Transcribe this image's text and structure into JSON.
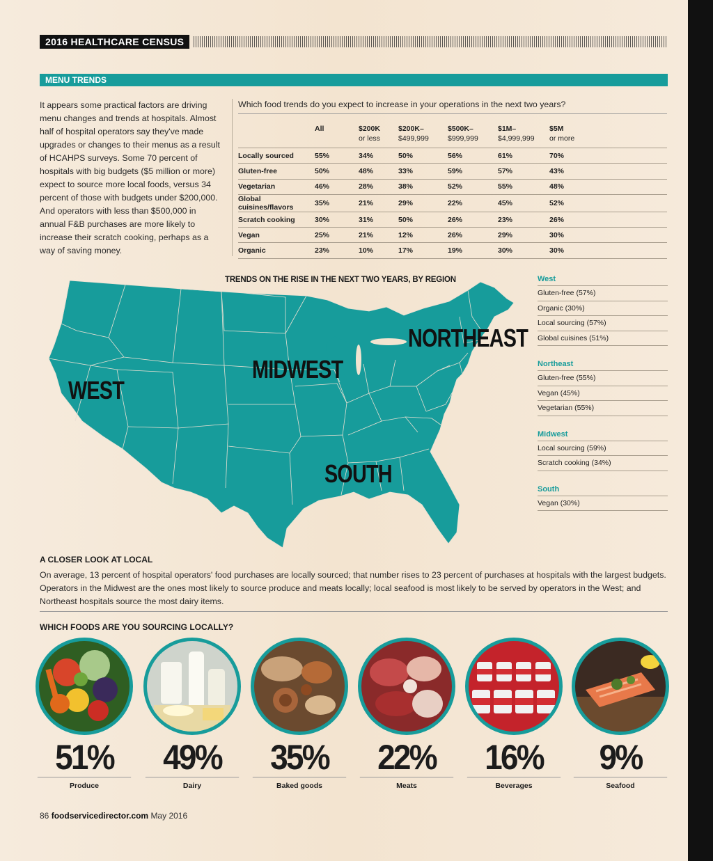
{
  "header": {
    "census": "2016 HEALTHCARE CENSUS",
    "section": "MENU TRENDS"
  },
  "intro": "It appears some practical factors are driving menu changes and trends at hospitals. Almost half of hospital operators say they've made upgrades or changes to their menus as a result of HCAHPS surveys. Some 70 percent of hospitals with big budgets ($5 million or more) expect to source more local foods, versus 34 percent of those with budgets under $200,000. And operators with less than $500,000 in annual F&B purchases are more likely to increase their scratch cooking, perhaps as a way of saving money.",
  "trends": {
    "question": "Which food trends do you expect to increase in your operations in the next two years?",
    "columns": [
      {
        "top": "All",
        "sub": ""
      },
      {
        "top": "$200K",
        "sub": "or less"
      },
      {
        "top": "$200K–",
        "sub": "$499,999"
      },
      {
        "top": "$500K–",
        "sub": "$999,999"
      },
      {
        "top": "$1M–",
        "sub": "$4,999,999"
      },
      {
        "top": "$5M",
        "sub": "or more"
      }
    ],
    "rows": [
      {
        "label": "Locally sourced",
        "values": [
          "55%",
          "34%",
          "50%",
          "56%",
          "61%",
          "70%"
        ]
      },
      {
        "label": "Gluten-free",
        "values": [
          "50%",
          "48%",
          "33%",
          "59%",
          "57%",
          "43%"
        ]
      },
      {
        "label": "Vegetarian",
        "values": [
          "46%",
          "28%",
          "38%",
          "52%",
          "55%",
          "48%"
        ]
      },
      {
        "label": "Global cuisines/flavors",
        "values": [
          "35%",
          "21%",
          "29%",
          "22%",
          "45%",
          "52%"
        ]
      },
      {
        "label": "Scratch cooking",
        "values": [
          "30%",
          "31%",
          "50%",
          "26%",
          "23%",
          "26%"
        ]
      },
      {
        "label": "Vegan",
        "values": [
          "25%",
          "21%",
          "12%",
          "26%",
          "29%",
          "30%"
        ]
      },
      {
        "label": "Organic",
        "values": [
          "23%",
          "10%",
          "17%",
          "19%",
          "30%",
          "30%"
        ]
      }
    ]
  },
  "map": {
    "title": "TRENDS ON THE RISE IN THE NEXT TWO YEARS, BY REGION",
    "labels": {
      "west": "WEST",
      "midwest": "MIDWEST",
      "northeast": "NORTHEAST",
      "south": "SOUTH"
    },
    "color": "#179c9b"
  },
  "regions": [
    {
      "name": "West",
      "items": [
        "Gluten-free (57%)",
        "Organic (30%)",
        "Local sourcing (57%)",
        "Global cuisines (51%)"
      ]
    },
    {
      "name": "Northeast",
      "items": [
        "Gluten-free (55%)",
        "Vegan (45%)",
        "Vegetarian (55%)"
      ]
    },
    {
      "name": "Midwest",
      "items": [
        "Local sourcing (59%)",
        "Scratch cooking (34%)"
      ]
    },
    {
      "name": "South",
      "items": [
        "Vegan (30%)"
      ]
    }
  ],
  "closer": {
    "heading": "A CLOSER LOOK AT LOCAL",
    "text": "On average, 13 percent of hospital operators' food purchases are locally sourced; that number rises to 23 percent of purchases at hospitals with the largest budgets. Operators in the Midwest are the ones most likely to source produce and meats locally; local seafood is most likely to be served by operators in the West; and Northeast hospitals source the most dairy items."
  },
  "foods": {
    "heading": "WHICH FOODS ARE YOU SOURCING LOCALLY?",
    "items": [
      {
        "pct": "51%",
        "label": "Produce",
        "icon": "produce-photo"
      },
      {
        "pct": "49%",
        "label": "Dairy",
        "icon": "dairy-photo"
      },
      {
        "pct": "35%",
        "label": "Baked goods",
        "icon": "baked-goods-photo"
      },
      {
        "pct": "22%",
        "label": "Meats",
        "icon": "meats-photo"
      },
      {
        "pct": "16%",
        "label": "Beverages",
        "icon": "beverages-photo"
      },
      {
        "pct": "9%",
        "label": "Seafood",
        "icon": "seafood-photo"
      }
    ]
  },
  "footer": {
    "page": "86",
    "site": "foodservicedirector.com",
    "date": "May 2016"
  }
}
